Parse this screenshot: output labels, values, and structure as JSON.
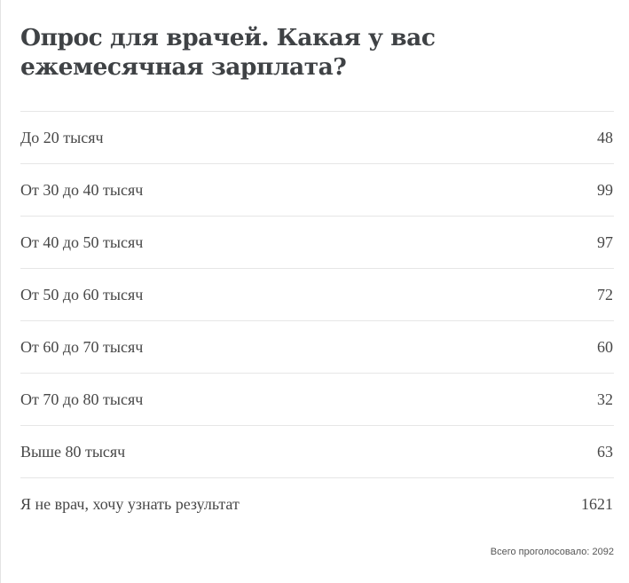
{
  "poll": {
    "title": "Опрос для врачей. Какая у вас ежемесячная зарплата?",
    "options": [
      {
        "label": "До 20 тысяч",
        "votes": "48"
      },
      {
        "label": "От 30 до 40 тысяч",
        "votes": "99"
      },
      {
        "label": "От 40 до 50 тысяч",
        "votes": "97"
      },
      {
        "label": "От 50 до 60 тысяч",
        "votes": "72"
      },
      {
        "label": "От 60 до 70 тысяч",
        "votes": "60"
      },
      {
        "label": "От 70 до 80 тысяч",
        "votes": "32"
      },
      {
        "label": "Выше 80 тысяч",
        "votes": "63"
      },
      {
        "label": "Я не врач, хочу узнать результат",
        "votes": "1621"
      }
    ],
    "total_label": "Всего проголосовало: 2092"
  }
}
